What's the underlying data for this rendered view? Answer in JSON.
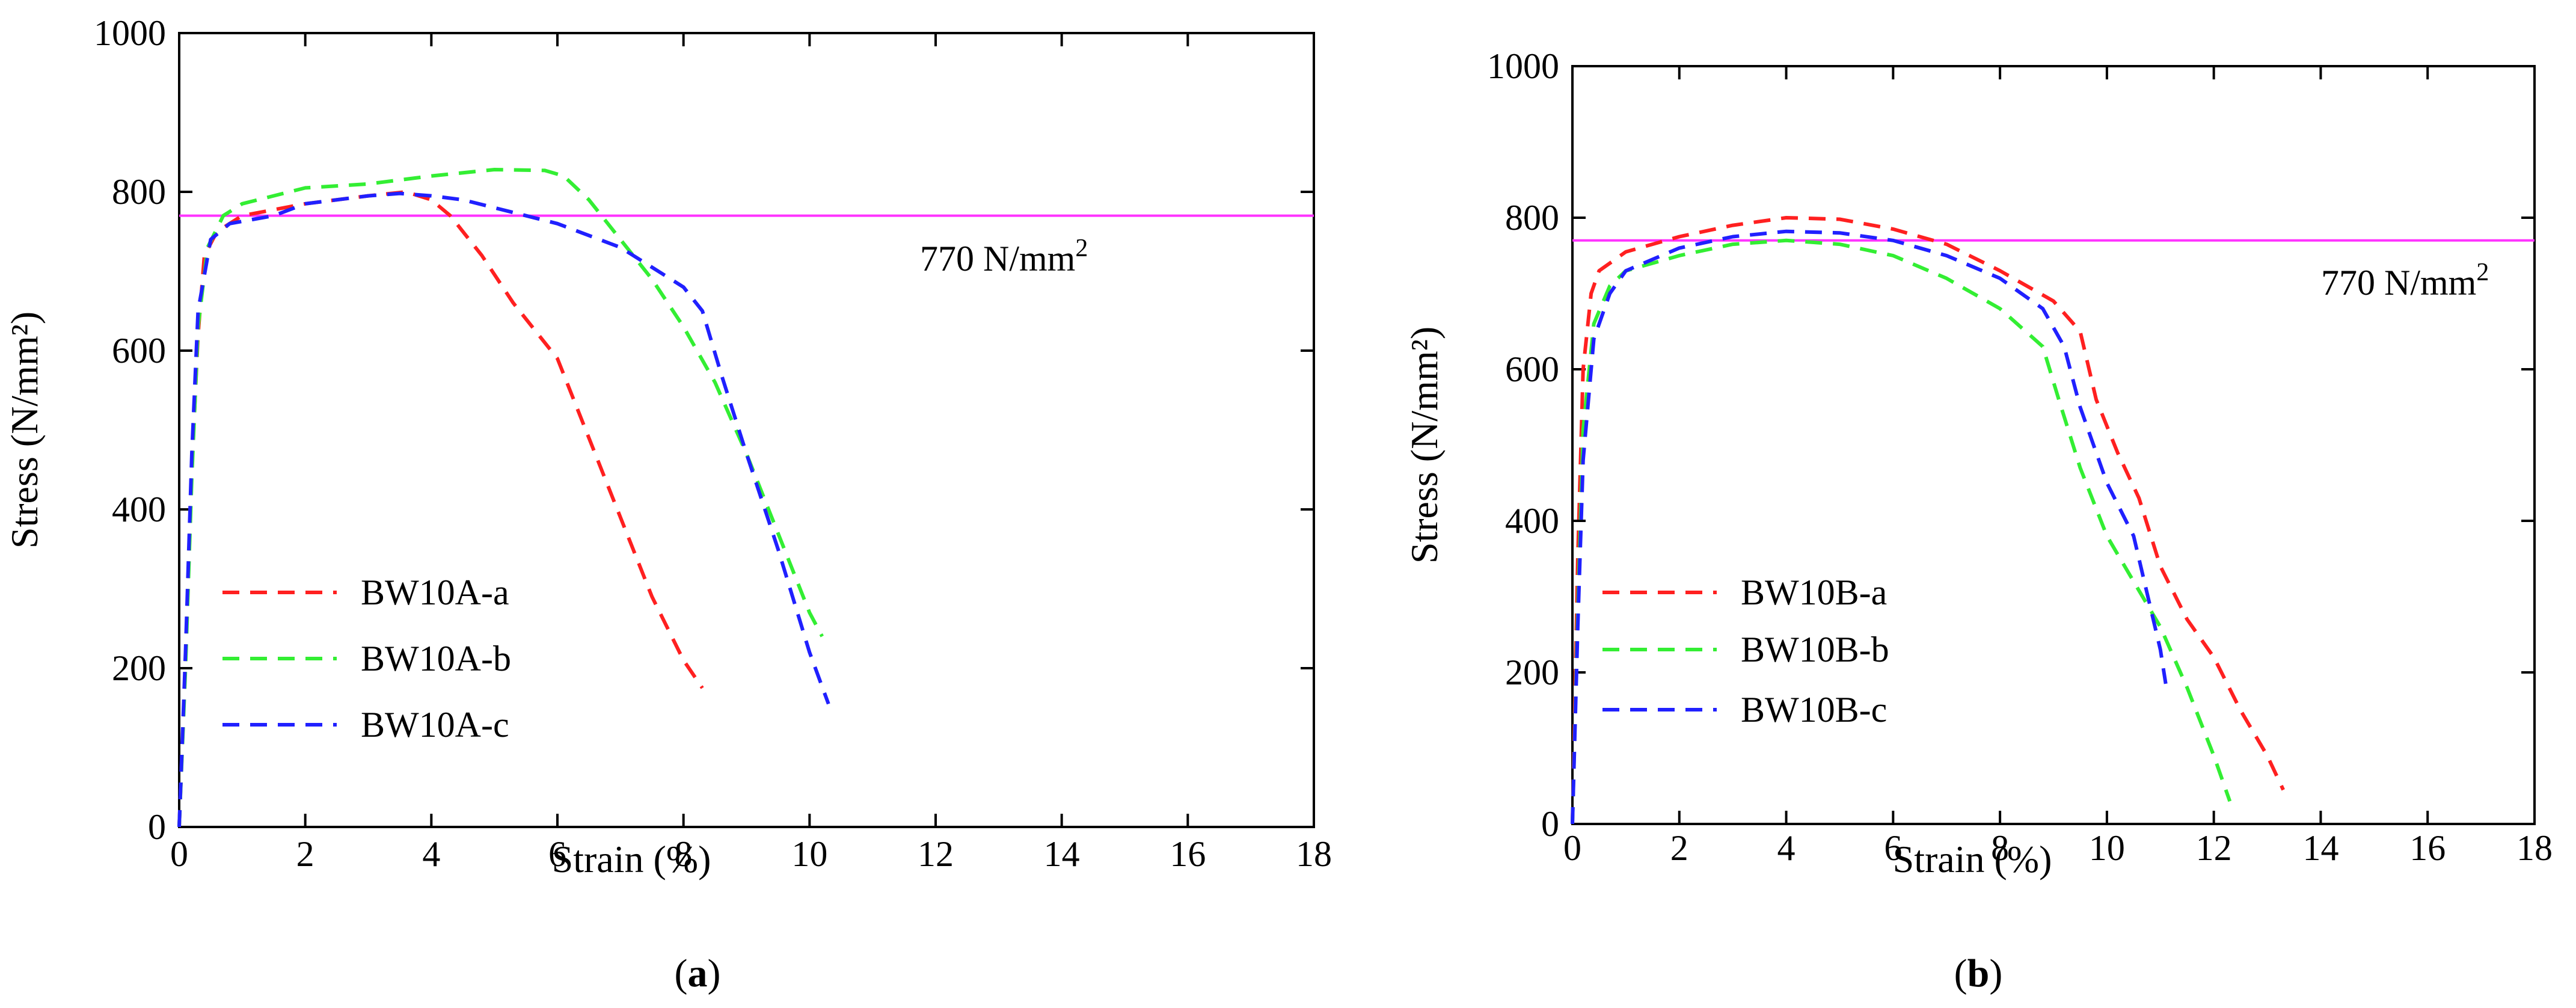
{
  "chart_data": [
    {
      "type": "line",
      "panel_label": "a",
      "title": "",
      "xlabel": "Strain (%)",
      "ylabel": "Stress (N/mm²)",
      "xlim": [
        0,
        18
      ],
      "ylim": [
        0,
        1000
      ],
      "xticks": [
        0,
        2,
        4,
        6,
        8,
        10,
        12,
        14,
        16,
        18
      ],
      "yticks": [
        0,
        200,
        400,
        600,
        800,
        1000
      ],
      "reference_line": {
        "y": 770,
        "label": "770 N/mm",
        "sup": "2",
        "color": "#ff33ff"
      },
      "legend_position": "lower-left",
      "series": [
        {
          "name": "BW10A-a",
          "color": "#ff2020",
          "dash": true,
          "points": [
            [
              0,
              0
            ],
            [
              0.1,
              210
            ],
            [
              0.2,
              450
            ],
            [
              0.3,
              620
            ],
            [
              0.4,
              720
            ],
            [
              0.6,
              750
            ],
            [
              1,
              770
            ],
            [
              2,
              785
            ],
            [
              3,
              795
            ],
            [
              3.6,
              800
            ],
            [
              4,
              790
            ],
            [
              4.3,
              770
            ],
            [
              4.8,
              720
            ],
            [
              5.3,
              660
            ],
            [
              6,
              590
            ],
            [
              6.5,
              490
            ],
            [
              7,
              390
            ],
            [
              7.5,
              290
            ],
            [
              8,
              210
            ],
            [
              8.3,
              175
            ]
          ]
        },
        {
          "name": "BW10A-b",
          "color": "#33ee33",
          "dash": true,
          "points": [
            [
              0,
              0
            ],
            [
              0.1,
              200
            ],
            [
              0.2,
              440
            ],
            [
              0.3,
              630
            ],
            [
              0.45,
              730
            ],
            [
              0.7,
              770
            ],
            [
              1,
              785
            ],
            [
              2,
              805
            ],
            [
              3,
              810
            ],
            [
              4,
              820
            ],
            [
              5,
              828
            ],
            [
              5.8,
              827
            ],
            [
              6.1,
              820
            ],
            [
              6.5,
              790
            ],
            [
              7,
              740
            ],
            [
              7.5,
              690
            ],
            [
              8,
              630
            ],
            [
              8.5,
              560
            ],
            [
              9,
              470
            ],
            [
              9.5,
              370
            ],
            [
              10,
              270
            ],
            [
              10.2,
              240
            ]
          ]
        },
        {
          "name": "BW10A-c",
          "color": "#2020ff",
          "dash": true,
          "points": [
            [
              0,
              0
            ],
            [
              0.1,
              220
            ],
            [
              0.2,
              470
            ],
            [
              0.3,
              650
            ],
            [
              0.5,
              740
            ],
            [
              0.8,
              760
            ],
            [
              1.5,
              770
            ],
            [
              2,
              785
            ],
            [
              3,
              795
            ],
            [
              3.5,
              798
            ],
            [
              4,
              795
            ],
            [
              4.5,
              790
            ],
            [
              5,
              780
            ],
            [
              6,
              760
            ],
            [
              7,
              730
            ],
            [
              8,
              680
            ],
            [
              8.3,
              650
            ],
            [
              8.6,
              570
            ],
            [
              9,
              470
            ],
            [
              9.5,
              350
            ],
            [
              10,
              220
            ],
            [
              10.3,
              155
            ]
          ]
        }
      ]
    },
    {
      "type": "line",
      "panel_label": "b",
      "title": "",
      "xlabel": "Strain (%)",
      "ylabel": "Stress (N/mm²)",
      "xlim": [
        0,
        18
      ],
      "ylim": [
        0,
        1000
      ],
      "xticks": [
        0,
        2,
        4,
        6,
        8,
        10,
        12,
        14,
        16,
        18
      ],
      "yticks": [
        0,
        200,
        400,
        600,
        800,
        1000
      ],
      "reference_line": {
        "y": 770,
        "label": "770 N/mm",
        "sup": "2",
        "color": "#ff33ff"
      },
      "legend_position": "lower-left",
      "series": [
        {
          "name": "BW10B-a",
          "color": "#ff2020",
          "dash": true,
          "points": [
            [
              0,
              0
            ],
            [
              0.1,
              350
            ],
            [
              0.2,
              600
            ],
            [
              0.35,
              700
            ],
            [
              0.5,
              730
            ],
            [
              1,
              755
            ],
            [
              2,
              775
            ],
            [
              3,
              790
            ],
            [
              4,
              800
            ],
            [
              5,
              798
            ],
            [
              6,
              785
            ],
            [
              7,
              765
            ],
            [
              8,
              730
            ],
            [
              9,
              690
            ],
            [
              9.5,
              650
            ],
            [
              9.8,
              560
            ],
            [
              10.2,
              490
            ],
            [
              10.6,
              430
            ],
            [
              11,
              340
            ],
            [
              11.5,
              270
            ],
            [
              12,
              220
            ],
            [
              12.5,
              150
            ],
            [
              13,
              90
            ],
            [
              13.3,
              45
            ]
          ]
        },
        {
          "name": "BW10B-b",
          "color": "#33ee33",
          "dash": true,
          "points": [
            [
              0,
              0
            ],
            [
              0.1,
              280
            ],
            [
              0.2,
              520
            ],
            [
              0.4,
              660
            ],
            [
              0.7,
              710
            ],
            [
              1,
              730
            ],
            [
              2,
              750
            ],
            [
              3,
              765
            ],
            [
              4,
              770
            ],
            [
              5,
              765
            ],
            [
              6,
              750
            ],
            [
              7,
              720
            ],
            [
              8,
              680
            ],
            [
              8.8,
              630
            ],
            [
              9.1,
              560
            ],
            [
              9.5,
              470
            ],
            [
              10,
              380
            ],
            [
              10.5,
              320
            ],
            [
              11,
              260
            ],
            [
              11.5,
              180
            ],
            [
              12,
              90
            ],
            [
              12.3,
              30
            ]
          ]
        },
        {
          "name": "BW10B-c",
          "color": "#2020ff",
          "dash": true,
          "points": [
            [
              0,
              0
            ],
            [
              0.1,
              260
            ],
            [
              0.2,
              480
            ],
            [
              0.4,
              640
            ],
            [
              0.7,
              700
            ],
            [
              1,
              730
            ],
            [
              2,
              760
            ],
            [
              3,
              775
            ],
            [
              4,
              782
            ],
            [
              5,
              780
            ],
            [
              6,
              770
            ],
            [
              7,
              750
            ],
            [
              8,
              720
            ],
            [
              8.8,
              680
            ],
            [
              9.2,
              630
            ],
            [
              9.5,
              550
            ],
            [
              10,
              450
            ],
            [
              10.5,
              380
            ],
            [
              10.8,
              290
            ],
            [
              11,
              230
            ],
            [
              11.1,
              185
            ]
          ]
        }
      ]
    }
  ],
  "captions": [
    {
      "open": "(",
      "letter": "a",
      "close": ")"
    },
    {
      "open": "(",
      "letter": "b",
      "close": ")"
    }
  ]
}
